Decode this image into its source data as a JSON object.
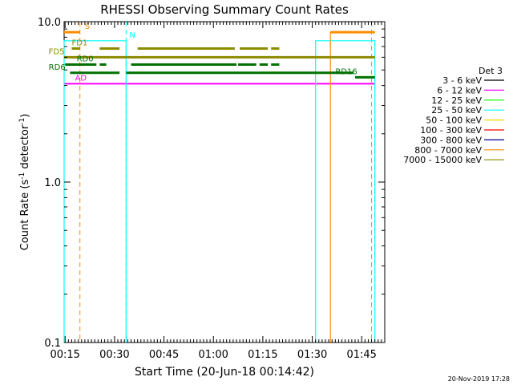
{
  "chart_data": {
    "type": "line",
    "title": "RHESSI Observing Summary Count Rates",
    "xlabel": "Start Time (20-Jun-18 00:14:42)",
    "ylabel_main": "Count Rate (s",
    "ylabel_sup1": "-1",
    "ylabel_mid": " detector",
    "ylabel_sup2": "-1",
    "ylabel_end": ")",
    "yscale": "log",
    "xlim": [
      "00:14:42",
      "01:52:00"
    ],
    "ylim": [
      0.1,
      10.0
    ],
    "x_ticks": [
      "00:15",
      "00:30",
      "00:45",
      "01:00",
      "01:15",
      "01:30",
      "01:45"
    ],
    "y_ticks": [
      "10.0",
      "1.0",
      "0.1"
    ],
    "grid": false,
    "legend_title": "Det 3",
    "legend_position": "right",
    "footer": "20-Nov-2019 17:28",
    "series": [
      {
        "name": "3 - 6 keV",
        "color": "#000000",
        "values": []
      },
      {
        "name": "6 - 12 keV",
        "color": "#ff00ff",
        "points": [
          [
            "00:14:42",
            4.1
          ],
          [
            "01:49:00",
            4.1
          ]
        ]
      },
      {
        "name": "12 - 25 keV",
        "color": "#00ff00",
        "values": []
      },
      {
        "name": "25 - 50 keV",
        "color": "#00ffff",
        "segments": [
          [
            [
              "00:14:42",
              0.1
            ],
            [
              "00:14:42",
              7.6
            ],
            [
              "00:33:30",
              7.6
            ],
            [
              "00:33:30",
              0.1
            ]
          ],
          [
            [
              "01:31:00",
              0.1
            ],
            [
              "01:31:00",
              7.6
            ],
            [
              "01:49:00",
              7.6
            ],
            [
              "01:49:00",
              0.1
            ]
          ]
        ]
      },
      {
        "name": "50 - 100 keV",
        "color": "#ffd700",
        "values": []
      },
      {
        "name": "100 - 300 keV",
        "color": "#ff0000",
        "values": []
      },
      {
        "name": "300 - 800 keV",
        "color": "#00008b",
        "values": []
      },
      {
        "name": "800 - 7000 keV",
        "color": "#ff8c00",
        "segments": [
          [
            [
              "00:14:42",
              8.6
            ],
            [
              "00:19:30",
              8.6
            ]
          ],
          [
            [
              "01:35:30",
              8.6
            ],
            [
              "01:49:00",
              8.6
            ]
          ],
          [
            [
              "01:35:30",
              0.1
            ],
            [
              "01:35:30",
              8.6
            ]
          ]
        ]
      },
      {
        "name": "7000 - 15000 keV",
        "color": "#8b8b00",
        "segments": [
          [
            [
              "00:14:42",
              6.0
            ],
            [
              "01:49:00",
              6.0
            ]
          ],
          [
            [
              "00:17:00",
              6.8
            ],
            [
              "00:19:30",
              6.8
            ]
          ],
          [
            [
              "00:25:30",
              6.8
            ],
            [
              "00:31:30",
              6.8
            ]
          ],
          [
            [
              "00:37:00",
              6.8
            ],
            [
              "01:06:30",
              6.8
            ]
          ],
          [
            [
              "01:08:00",
              6.8
            ],
            [
              "01:16:30",
              6.8
            ]
          ],
          [
            [
              "01:17:30",
              6.8
            ],
            [
              "01:20:00",
              6.8
            ]
          ]
        ]
      }
    ],
    "rate_bars": [
      {
        "color": "#007000",
        "segments": [
          [
            [
              "00:15:00",
              5.4
            ],
            [
              "00:24:30",
              5.4
            ]
          ],
          [
            [
              "00:25:30",
              5.4
            ],
            [
              "00:27:30",
              5.4
            ]
          ],
          [
            [
              "00:35:00",
              5.4
            ],
            [
              "01:07:00",
              5.4
            ]
          ],
          [
            [
              "01:07:30",
              5.4
            ],
            [
              "01:13:00",
              5.4
            ]
          ],
          [
            [
              "01:14:00",
              5.4
            ],
            [
              "01:16:30",
              5.4
            ]
          ],
          [
            [
              "01:17:30",
              5.4
            ],
            [
              "01:20:00",
              5.4
            ]
          ]
        ]
      },
      {
        "color": "#007000",
        "segments": [
          [
            [
              "00:16:30",
              4.8
            ],
            [
              "00:31:30",
              4.8
            ]
          ],
          [
            [
              "00:33:30",
              4.8
            ],
            [
              "01:42:30",
              4.8
            ]
          ]
        ]
      },
      {
        "color": "#007000",
        "segments": [
          [
            [
              "01:43:00",
              4.5
            ],
            [
              "01:49:00",
              4.5
            ]
          ]
        ]
      }
    ],
    "vlines": [
      {
        "x": "00:19:30",
        "color": "#ff8c00",
        "dash": true
      },
      {
        "x": "00:33:30",
        "color": "#00ffff",
        "dash": true
      },
      {
        "x": "01:48:00",
        "color": "#ff8c00",
        "dash": true
      }
    ],
    "annotations": [
      {
        "text": "S",
        "x": "00:21:00",
        "y": 8.6,
        "color": "#ff8c00"
      },
      {
        "text": "N",
        "x": "00:34:30",
        "y": 7.6,
        "color": "#00ffff"
      },
      {
        "text": "FD1",
        "x": "00:17:00",
        "y": 6.8,
        "color": "#8b8b00"
      },
      {
        "text": "FD5",
        "x": "00:10:00",
        "y": 6.0,
        "color": "#8b8b00"
      },
      {
        "text": "RD0",
        "x": "00:18:30",
        "y": 5.4,
        "color": "#007000"
      },
      {
        "text": "RD6",
        "x": "00:10:00",
        "y": 4.8,
        "color": "#007000"
      },
      {
        "text": "RD16",
        "x": "01:37:00",
        "y": 4.5,
        "color": "#007000"
      },
      {
        "text": "AD",
        "x": "00:18:00",
        "y": 4.1,
        "color": "#ff00ff"
      }
    ]
  }
}
